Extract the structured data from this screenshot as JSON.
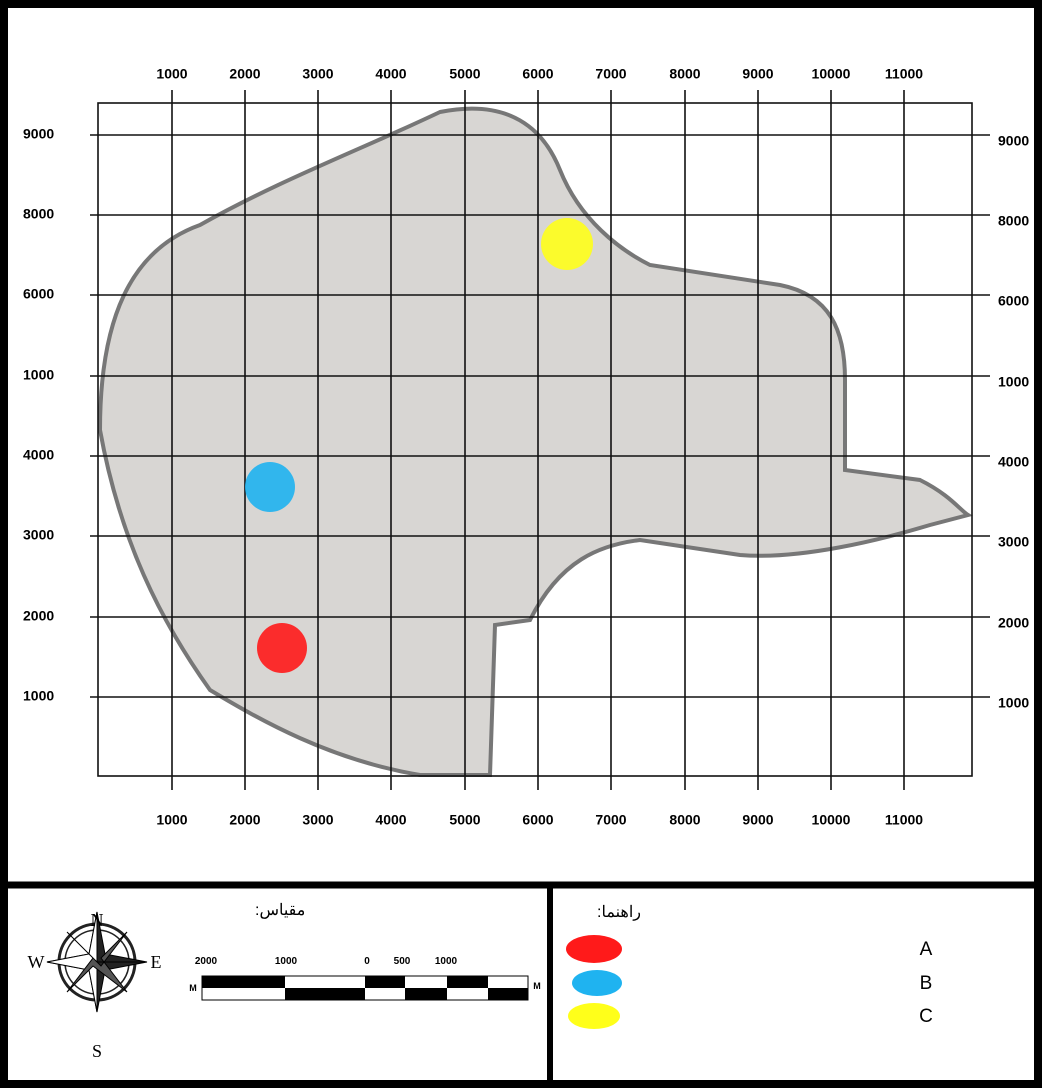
{
  "map": {
    "top_labels": [
      "1000",
      "2000",
      "3000",
      "4000",
      "5000",
      "6000",
      "7000",
      "8000",
      "9000",
      "10000",
      "11000"
    ],
    "bottom_labels": [
      "1000",
      "2000",
      "3000",
      "4000",
      "5000",
      "6000",
      "7000",
      "8000",
      "9000",
      "10000",
      "11000"
    ],
    "left_labels": [
      "9000",
      "8000",
      "6000",
      "1000",
      "4000",
      "3000",
      "2000",
      "1000"
    ],
    "right_labels": [
      "9000",
      "8000",
      "6000",
      "1000",
      "4000",
      "3000",
      "2000",
      "1000"
    ]
  },
  "scale": {
    "title": "مقیاس:",
    "labels": [
      "2000",
      "1000",
      "0",
      "500",
      "1000"
    ],
    "unit_left": "M",
    "unit_right": "M"
  },
  "compass": {
    "n": "N",
    "s": "S",
    "e": "E",
    "w": "W"
  },
  "legend": {
    "title": "راهنما:",
    "items": [
      "A",
      "B",
      "C"
    ]
  }
}
